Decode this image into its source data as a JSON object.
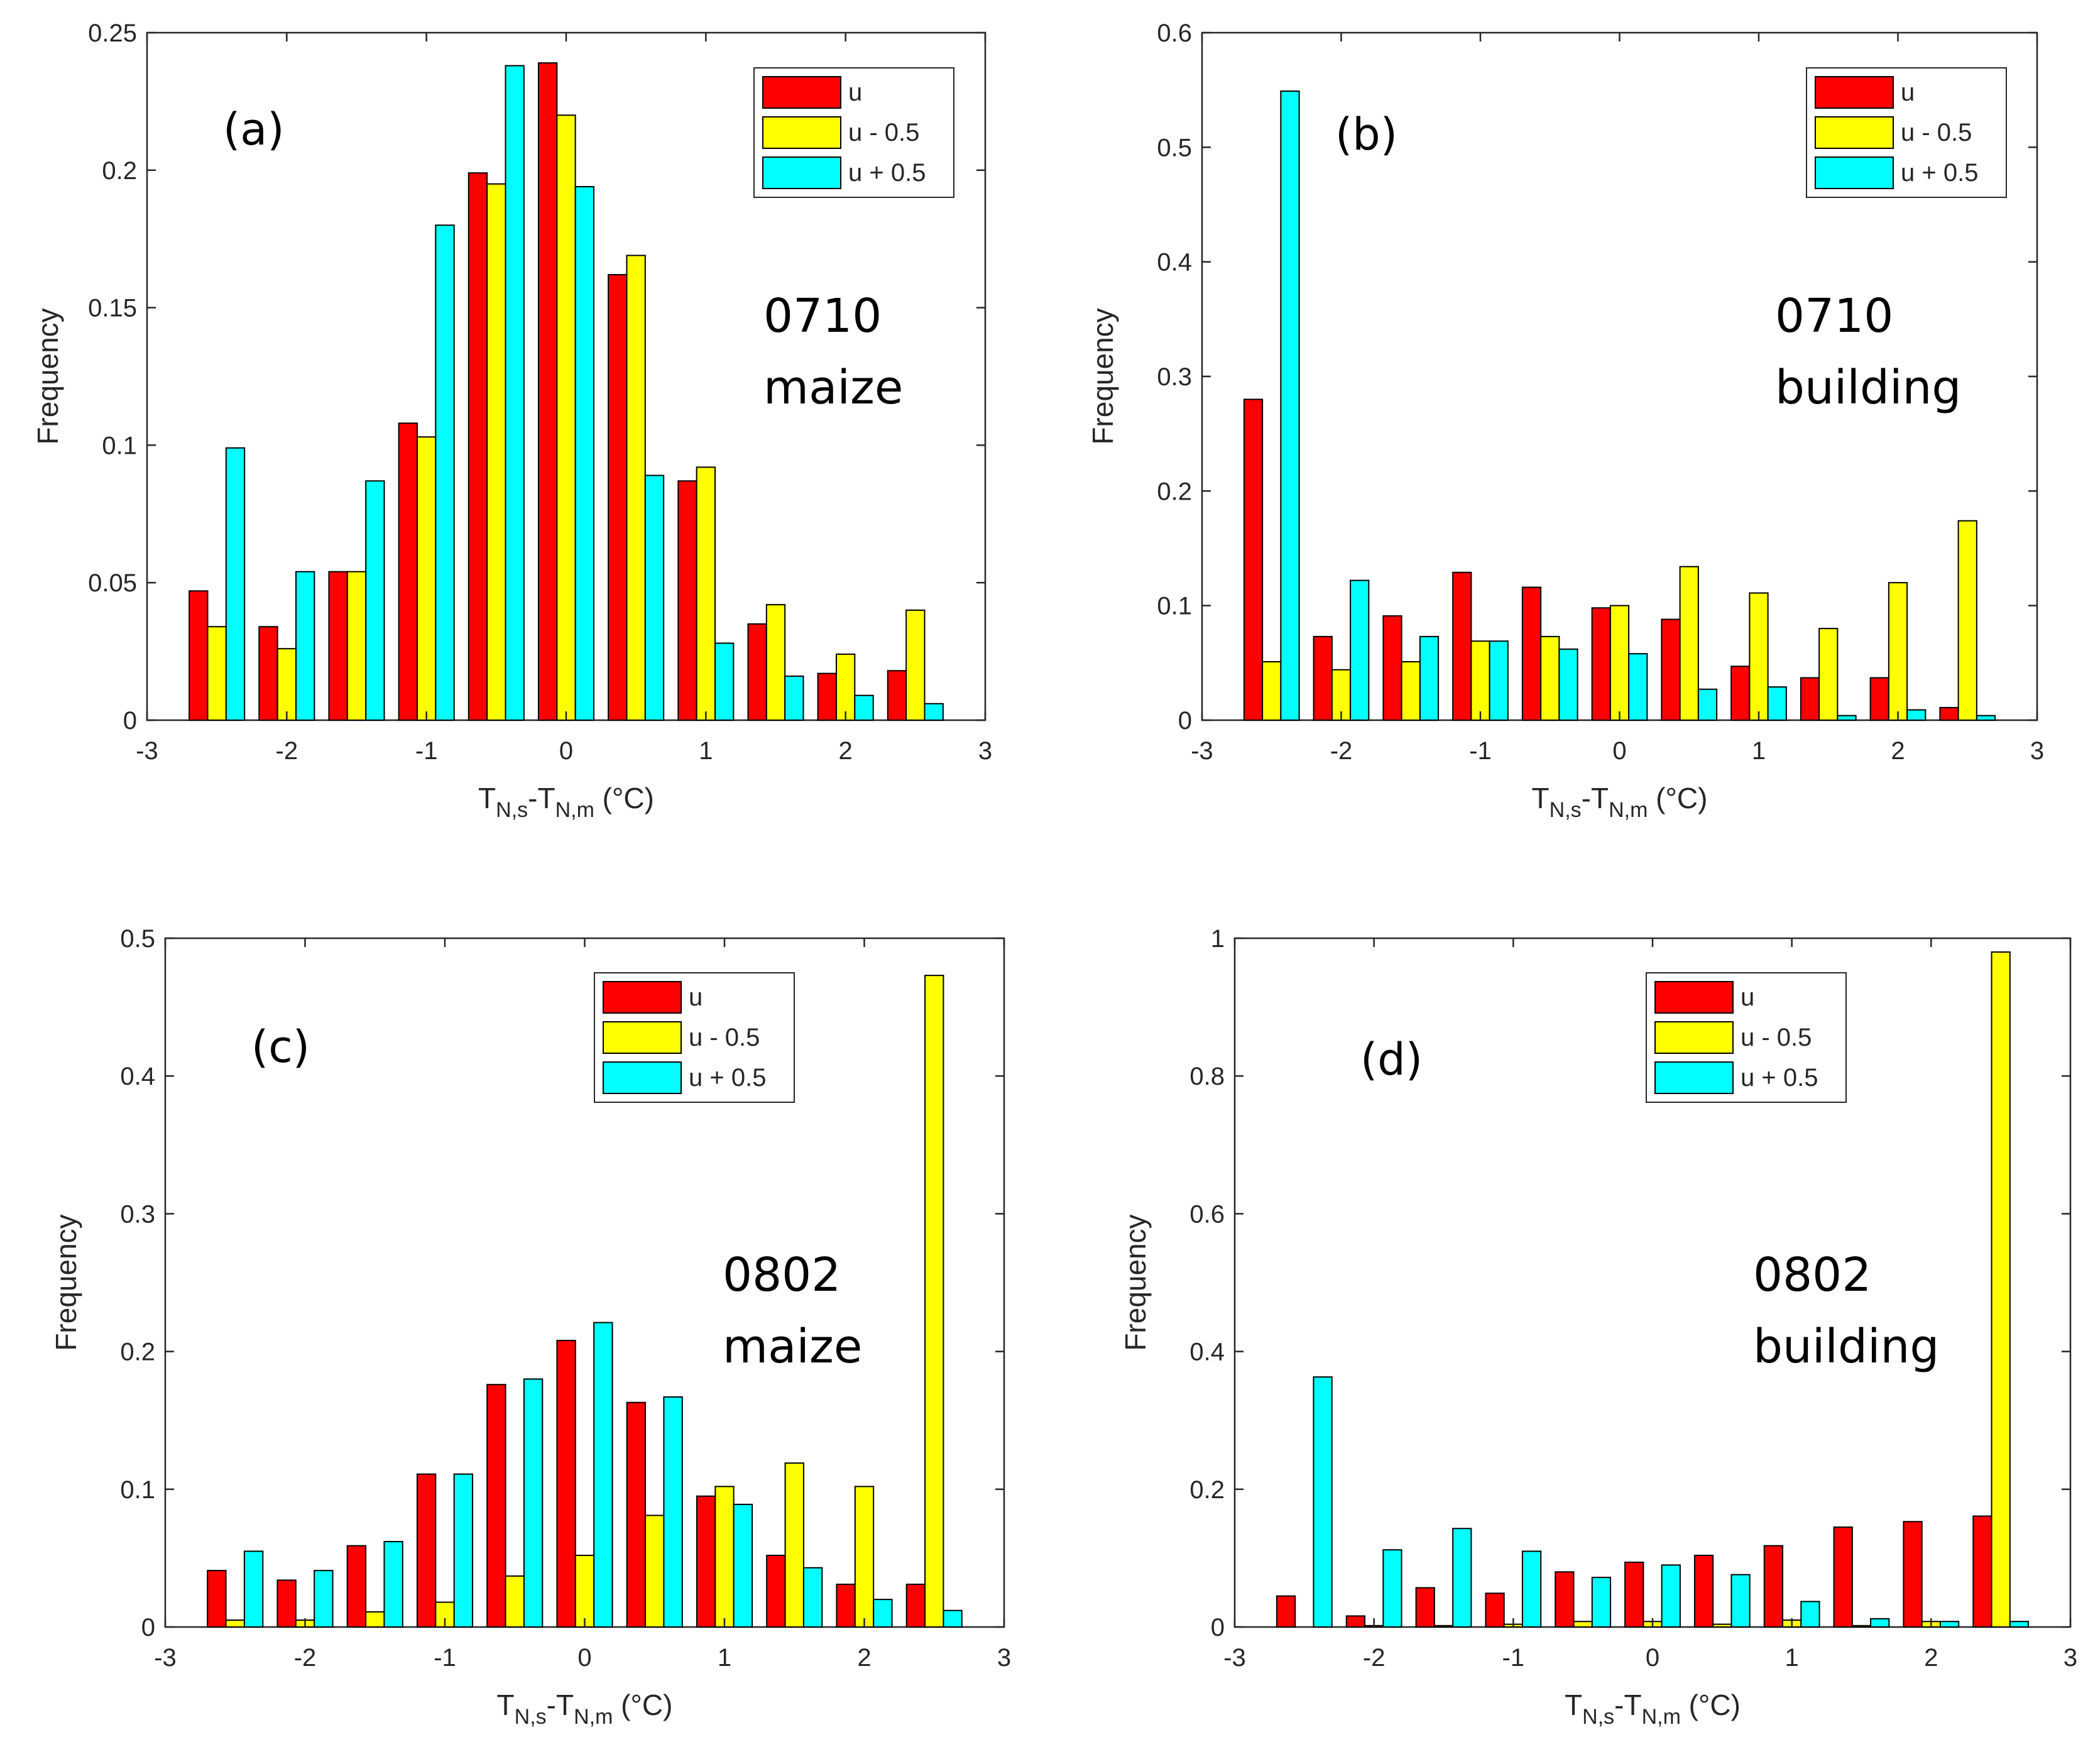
{
  "figure": {
    "xlabel_main": "T",
    "xlabel_sub1": "N,s",
    "xlabel_dash": "-T",
    "xlabel_sub2": "N,m",
    "xlabel_unit": " (°C)"
  },
  "chart_data": [
    {
      "type": "bar",
      "panel": "(a)",
      "annotation": [
        "0710",
        "maize"
      ],
      "ylabel": "Frequency",
      "xlim": [
        -3,
        3
      ],
      "ylim": [
        0,
        0.25
      ],
      "xticks": [
        -3,
        -2,
        -1,
        0,
        1,
        2,
        3
      ],
      "xtick_labels": [
        "-3",
        "-2",
        "-1",
        "0",
        "1",
        "2",
        "3"
      ],
      "yticks": [
        0,
        0.05,
        0.1,
        0.15,
        0.2,
        0.25
      ],
      "ytick_labels": [
        "0",
        "0.05",
        "0.1",
        "0.15",
        "0.2",
        "0.25"
      ],
      "categories": [
        -2.5,
        -2,
        -1.5,
        -1,
        -0.5,
        0,
        0.5,
        1,
        1.5,
        2,
        2.5
      ],
      "series": [
        {
          "name": "u",
          "color": "#ff0000",
          "values": [
            0.047,
            0.034,
            0.054,
            0.108,
            0.199,
            0.239,
            0.162,
            0.087,
            0.035,
            0.017,
            0.018
          ]
        },
        {
          "name": "u - 0.5",
          "color": "#ffff00",
          "values": [
            0.034,
            0.026,
            0.054,
            0.103,
            0.195,
            0.22,
            0.169,
            0.092,
            0.042,
            0.024,
            0.04
          ]
        },
        {
          "name": "u + 0.5",
          "color": "#00ffff",
          "values": [
            0.099,
            0.054,
            0.087,
            0.18,
            0.238,
            0.194,
            0.089,
            0.028,
            0.016,
            0.009,
            0.006
          ]
        }
      ],
      "legend_position": "top-right"
    },
    {
      "type": "bar",
      "panel": "(b)",
      "annotation": [
        "0710",
        "building"
      ],
      "ylabel": "Frequency",
      "xlim": [
        -3,
        3
      ],
      "ylim": [
        0,
        0.6
      ],
      "xticks": [
        -3,
        -2,
        -1,
        0,
        1,
        2,
        3
      ],
      "xtick_labels": [
        "-3",
        "-2",
        "-1",
        "0",
        "1",
        "2",
        "3"
      ],
      "yticks": [
        0,
        0.1,
        0.2,
        0.3,
        0.4,
        0.5,
        0.6
      ],
      "ytick_labels": [
        "0",
        "0.1",
        "0.2",
        "0.3",
        "0.4",
        "0.5",
        "0.6"
      ],
      "categories": [
        -2.5,
        -2,
        -1.5,
        -1,
        -0.5,
        0,
        0.5,
        1,
        1.5,
        2,
        2.5
      ],
      "series": [
        {
          "name": "u",
          "color": "#ff0000",
          "values": [
            0.28,
            0.073,
            0.091,
            0.129,
            0.116,
            0.098,
            0.088,
            0.047,
            0.037,
            0.037,
            0.011
          ]
        },
        {
          "name": "u - 0.5",
          "color": "#ffff00",
          "values": [
            0.051,
            0.044,
            0.051,
            0.069,
            0.073,
            0.1,
            0.134,
            0.111,
            0.08,
            0.12,
            0.174
          ]
        },
        {
          "name": "u + 0.5",
          "color": "#00ffff",
          "values": [
            0.549,
            0.122,
            0.073,
            0.069,
            0.062,
            0.058,
            0.027,
            0.029,
            0.004,
            0.009,
            0.004
          ]
        }
      ],
      "legend_position": "top-right"
    },
    {
      "type": "bar",
      "panel": "(c)",
      "annotation": [
        "0802",
        "maize"
      ],
      "ylabel": "Frequency",
      "xlim": [
        -3,
        3
      ],
      "ylim": [
        0,
        0.5
      ],
      "xticks": [
        -3,
        -2,
        -1,
        0,
        1,
        2,
        3
      ],
      "xtick_labels": [
        "-3",
        "-2",
        "-1",
        "0",
        "1",
        "2",
        "3"
      ],
      "yticks": [
        0,
        0.1,
        0.2,
        0.3,
        0.4,
        0.5
      ],
      "ytick_labels": [
        "0",
        "0.1",
        "0.2",
        "0.3",
        "0.4",
        "0.5"
      ],
      "categories": [
        -2.5,
        -2,
        -1.5,
        -1,
        -0.5,
        0,
        0.5,
        1,
        1.5,
        2,
        2.5
      ],
      "series": [
        {
          "name": "u",
          "color": "#ff0000",
          "values": [
            0.041,
            0.034,
            0.059,
            0.111,
            0.176,
            0.208,
            0.163,
            0.095,
            0.052,
            0.031,
            0.031
          ]
        },
        {
          "name": "u - 0.5",
          "color": "#ffff00",
          "values": [
            0.005,
            0.005,
            0.011,
            0.018,
            0.037,
            0.052,
            0.081,
            0.102,
            0.119,
            0.102,
            0.473
          ]
        },
        {
          "name": "u + 0.5",
          "color": "#00ffff",
          "values": [
            0.055,
            0.041,
            0.062,
            0.111,
            0.18,
            0.221,
            0.167,
            0.089,
            0.043,
            0.02,
            0.012
          ]
        }
      ],
      "legend_position": "top-right"
    },
    {
      "type": "bar",
      "panel": "(d)",
      "annotation": [
        "0802",
        "building"
      ],
      "ylabel": "Frequency",
      "xlim": [
        -3,
        3
      ],
      "ylim": [
        0,
        1
      ],
      "xticks": [
        -3,
        -2,
        -1,
        0,
        1,
        2,
        3
      ],
      "xtick_labels": [
        "-3",
        "-2",
        "-1",
        "0",
        "1",
        "2",
        "3"
      ],
      "yticks": [
        0,
        0.2,
        0.4,
        0.6,
        0.8,
        1
      ],
      "ytick_labels": [
        "0",
        "0.2",
        "0.4",
        "0.6",
        "0.8",
        "1"
      ],
      "categories": [
        -2.5,
        -2,
        -1.5,
        -1,
        -0.5,
        0,
        0.5,
        1,
        1.5,
        2,
        2.5
      ],
      "series": [
        {
          "name": "u",
          "color": "#ff0000",
          "values": [
            0.045,
            0.016,
            0.057,
            0.049,
            0.08,
            0.094,
            0.104,
            0.118,
            0.145,
            0.153,
            0.161
          ]
        },
        {
          "name": "u - 0.5",
          "color": "#ffff00",
          "values": [
            0.0,
            0.002,
            0.002,
            0.004,
            0.008,
            0.008,
            0.004,
            0.01,
            0.002,
            0.008,
            0.98
          ]
        },
        {
          "name": "u + 0.5",
          "color": "#00ffff",
          "values": [
            0.363,
            0.112,
            0.143,
            0.11,
            0.072,
            0.09,
            0.076,
            0.037,
            0.012,
            0.008,
            0.008
          ]
        }
      ],
      "legend_position": "top-right"
    }
  ]
}
